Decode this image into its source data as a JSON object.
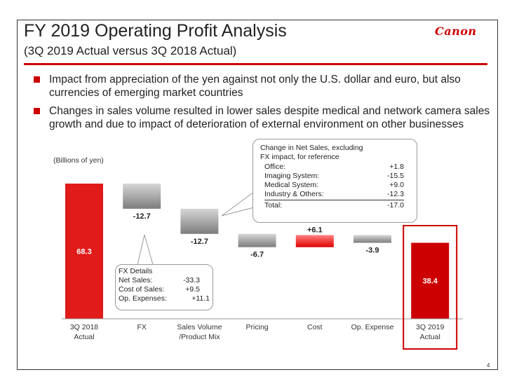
{
  "header": {
    "title": "FY 2019 Operating Profit Analysis",
    "subtitle": "(3Q 2019 Actual versus 3Q 2018 Actual)",
    "logo": "Canon"
  },
  "bullets": [
    "Impact from appreciation of the yen against not only the U.S. dollar and euro, but also currencies of emerging market countries",
    "Changes in sales volume resulted in lower sales despite medical and network camera sales growth and due to impact of deterioration of external environment on other businesses"
  ],
  "colors": {
    "accent": "#cc0000",
    "increase": "#e31b1b",
    "decrease_gray": "#8c8c8c"
  },
  "chart_data": {
    "type": "bar",
    "subtype": "waterfall",
    "unit_label": "(Billions of yen)",
    "categories": [
      "3Q 2018\nActual",
      "FX",
      "Sales Volume\n/Product Mix",
      "Pricing",
      "Cost",
      "Op. Expense",
      "3Q 2019\nActual"
    ],
    "values": [
      68.3,
      -12.7,
      -12.7,
      -6.7,
      6.1,
      -3.9,
      38.4
    ],
    "value_labels": [
      "68.3",
      "-12.7",
      "-12.7",
      "-6.7",
      "+6.1",
      "-3.9",
      "38.4"
    ],
    "kinds": [
      "total",
      "delta",
      "delta",
      "delta",
      "delta",
      "delta",
      "total"
    ],
    "highlight": "3Q 2019\nActual",
    "annotations": {
      "fx_details": {
        "title": "FX Details",
        "rows": [
          {
            "label": "Net Sales:",
            "value": "-33.3"
          },
          {
            "label": "Cost of Sales:",
            "value": "+9.5"
          },
          {
            "label": "Op. Expenses:",
            "value": "+11.1"
          }
        ]
      },
      "net_sales_change": {
        "title": "Change in Net Sales, excluding FX impact, for reference",
        "rows": [
          {
            "label": "Office:",
            "value": "+1.8"
          },
          {
            "label": "Imaging System:",
            "value": "-15.5"
          },
          {
            "label": "Medical System:",
            "value": "+9.0"
          },
          {
            "label": "Industry & Others:",
            "value": "-12.3"
          }
        ],
        "total": {
          "label": "Total:",
          "value": "-17.0"
        }
      }
    }
  },
  "page_number": "4"
}
